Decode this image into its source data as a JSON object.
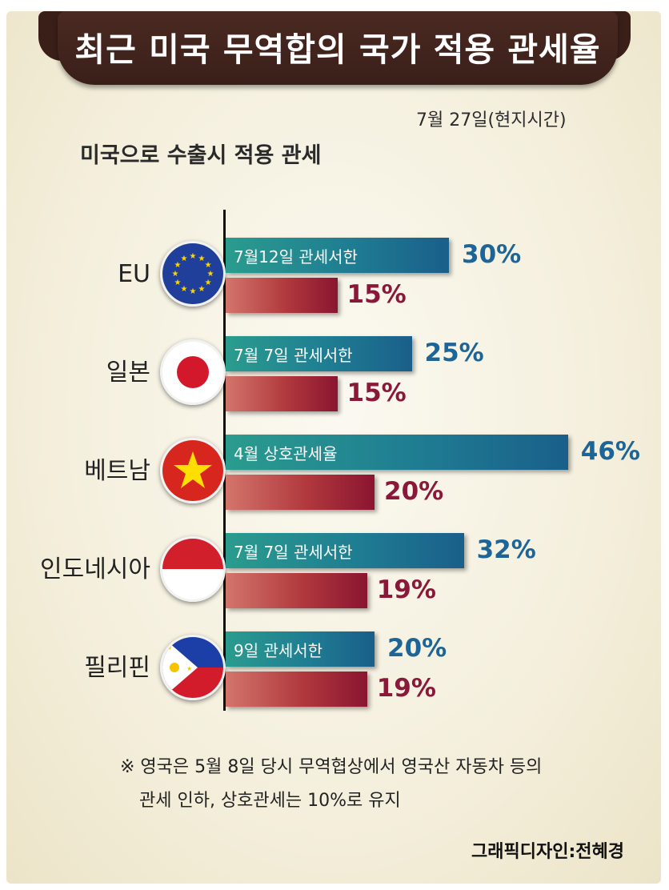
{
  "title": "최근 미국 무역합의 국가 적용 관세율",
  "date": "7월 27일(현지시간)",
  "subtitle": "미국으로 수출시 적용 관세",
  "note": {
    "line1": "※ 영국은 5월 8일 당시 무역협상에서 영국산 자동차 등의",
    "line2": "관세 인하, 상호관세는 10%로 유지"
  },
  "credit": "그래픽디자인:전혜경",
  "colors": {
    "new_bar": "#1f7d92",
    "old_bar": "#b0383d",
    "new_value": "#1c6596",
    "old_value": "#8a1838",
    "banner": "#3a1f19"
  },
  "chart_data": {
    "type": "bar",
    "orientation": "horizontal",
    "categories": [
      "EU",
      "일본",
      "베트남",
      "인도네시아",
      "필리핀"
    ],
    "flag_icons": [
      "eu-flag-icon",
      "japan-flag-icon",
      "vietnam-flag-icon",
      "indonesia-flag-icon",
      "philippines-flag-icon"
    ],
    "series": [
      {
        "values": [
          30,
          25,
          46,
          32,
          20
        ],
        "labels": [
          "30%",
          "25%",
          "46%",
          "32%",
          "20%"
        ],
        "bar_labels": [
          "7월12일 관세서한",
          "7월 7일 관세서한",
          "4월 상호관세율",
          "7월 7일 관세서한",
          "9일 관세서한"
        ]
      },
      {
        "values": [
          15,
          15,
          20,
          19,
          19
        ],
        "labels": [
          "15%",
          "15%",
          "20%",
          "19%",
          "19%"
        ]
      }
    ]
  }
}
